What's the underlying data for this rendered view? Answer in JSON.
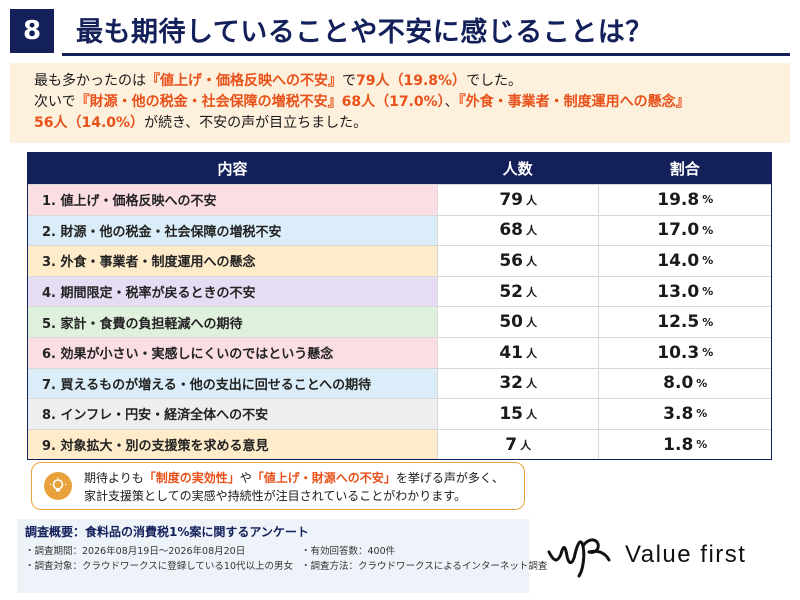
{
  "header": {
    "number": "8",
    "title": "最も期待していることや不安に感じることは？"
  },
  "summary": {
    "line1_a": "最も多かったのは",
    "line1_hl1": "『値上げ・価格反映への不安』",
    "line1_b": "で",
    "line1_hl2": "79人（19.8%）",
    "line1_c": "でした。",
    "line2_a": "次いで",
    "line2_hl1": "『財源・他の税金・社会保障の増税不安』68人（17.0%）",
    "line2_b": "、",
    "line2_hl2": "『外食・事業者・制度運用への懸念』",
    "line3_hl": "56人（14.0%）",
    "line3_b": "が続き、不安の声が目立ちました。"
  },
  "table": {
    "headers": [
      "内容",
      "人数",
      "割合"
    ],
    "unit_count": "人",
    "unit_pct": "%",
    "rows": [
      {
        "label": "1. 値上げ・価格反映への不安",
        "count": "79",
        "pct": "19.8",
        "color": "#fbdde4"
      },
      {
        "label": "2. 財源・他の税金・社会保障の増税不安",
        "count": "68",
        "pct": "17.0",
        "color": "#daedf8"
      },
      {
        "label": "3. 外食・事業者・制度運用への懸念",
        "count": "56",
        "pct": "14.0",
        "color": "#fdebc9"
      },
      {
        "label": "4. 期間限定・税率が戻るときの不安",
        "count": "52",
        "pct": "13.0",
        "color": "#e6dcf3"
      },
      {
        "label": "5. 家計・食費の負担軽減への期待",
        "count": "50",
        "pct": "12.5",
        "color": "#dff0dc"
      },
      {
        "label": "6. 効果が小さい・実感しにくいのではという懸念",
        "count": "41",
        "pct": "10.3",
        "color": "#fbdde4"
      },
      {
        "label": "7. 買えるものが増える・他の支出に回せることへの期待",
        "count": "32",
        "pct": "8.0",
        "color": "#daedf8"
      },
      {
        "label": "8. インフレ・円安・経済全体への不安",
        "count": "15",
        "pct": "3.8",
        "color": "#eeeeee"
      },
      {
        "label": "9. 対象拡大・別の支援策を求める意見",
        "count": "7",
        "pct": "1.8",
        "color": "#fdebc9"
      }
    ]
  },
  "callout": {
    "icon": "lightbulb-icon",
    "l1_a": "期待よりも",
    "l1_hl1": "「制度の実効性」",
    "l1_b": "や",
    "l1_hl2": "「値上げ・財源への不安」",
    "l1_c": "を挙げる声が多く、",
    "l2": "家計支援策としての実感や持続性が注目されていることがわかります。"
  },
  "footer": {
    "title": "調査概要：食料品の消費税1%案に関するアンケート",
    "period": "・調査期間：2026年08月19日～2026年08月20日",
    "target": "・調査対象：クラウドワークスに登録している10代以上の男女",
    "responses": "・有効回答数：400件",
    "method": "・調査方法：クラウドワークスによるインターネット調査"
  },
  "logo": {
    "text": "Value first"
  },
  "colors": {
    "navy": "#13205a",
    "accent": "#e8511a",
    "summary_bg": "#fdf1de",
    "callout_border": "#e9a23b"
  }
}
